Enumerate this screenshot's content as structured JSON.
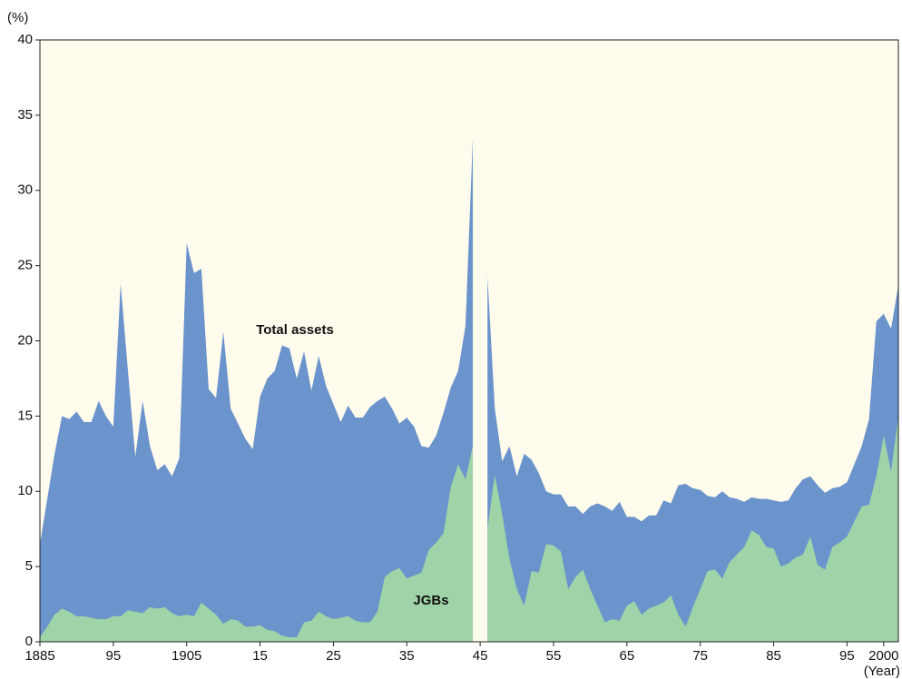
{
  "chart_data": {
    "type": "area",
    "xlabel": "(Year)",
    "ylabel": "(%)",
    "x": [
      1885,
      1886,
      1887,
      1888,
      1889,
      1890,
      1891,
      1892,
      1893,
      1894,
      1895,
      1896,
      1897,
      1898,
      1899,
      1900,
      1901,
      1902,
      1903,
      1904,
      1905,
      1906,
      1907,
      1908,
      1909,
      1910,
      1911,
      1912,
      1913,
      1914,
      1915,
      1916,
      1917,
      1918,
      1919,
      1920,
      1921,
      1922,
      1923,
      1924,
      1925,
      1926,
      1927,
      1928,
      1929,
      1930,
      1931,
      1932,
      1933,
      1934,
      1935,
      1936,
      1937,
      1938,
      1939,
      1940,
      1941,
      1942,
      1943,
      1944,
      1945,
      1946,
      1947,
      1948,
      1949,
      1950,
      1951,
      1952,
      1953,
      1954,
      1955,
      1956,
      1957,
      1958,
      1959,
      1960,
      1961,
      1962,
      1963,
      1964,
      1965,
      1966,
      1967,
      1968,
      1969,
      1970,
      1971,
      1972,
      1973,
      1974,
      1975,
      1976,
      1977,
      1978,
      1979,
      1980,
      1981,
      1982,
      1983,
      1984,
      1985,
      1986,
      1987,
      1988,
      1989,
      1990,
      1991,
      1992,
      1993,
      1994,
      1995,
      1996,
      1997,
      1998,
      1999,
      2000,
      2001,
      2002
    ],
    "series": [
      {
        "name": "Total assets",
        "color": "#6b93cc",
        "values": [
          6.5,
          9.5,
          12.5,
          15.0,
          14.8,
          15.3,
          14.6,
          14.6,
          16.0,
          15.0,
          14.3,
          23.8,
          18.0,
          12.3,
          16.0,
          13.0,
          11.4,
          11.8,
          11.0,
          12.2,
          26.5,
          24.5,
          24.8,
          16.8,
          16.2,
          20.6,
          15.5,
          14.5,
          13.5,
          12.8,
          16.3,
          17.5,
          18.0,
          19.7,
          19.5,
          17.5,
          19.3,
          16.7,
          19.0,
          17.0,
          15.8,
          14.6,
          15.7,
          14.9,
          14.9,
          15.6,
          16.0,
          16.3,
          15.5,
          14.5,
          14.9,
          14.3,
          13.0,
          12.9,
          13.7,
          15.2,
          16.9,
          18.0,
          21.0,
          33.5,
          null,
          24.3,
          15.5,
          12.0,
          13.0,
          11.0,
          12.5,
          12.1,
          11.2,
          10.0,
          9.8,
          9.8,
          9.0,
          9.0,
          8.5,
          9.0,
          9.2,
          9.0,
          8.7,
          9.3,
          8.3,
          8.3,
          8.0,
          8.4,
          8.4,
          9.4,
          9.2,
          10.4,
          10.5,
          10.2,
          10.1,
          9.7,
          9.6,
          10.0,
          9.6,
          9.5,
          9.3,
          9.6,
          9.5,
          9.5,
          9.4,
          9.3,
          9.4,
          10.2,
          10.8,
          11.0,
          10.4,
          9.9,
          10.2,
          10.3,
          10.6,
          11.8,
          13.0,
          14.8,
          21.3,
          21.8,
          20.8,
          23.7
        ]
      },
      {
        "name": "JGBs",
        "color": "#9fd4a8",
        "values": [
          0.3,
          1.0,
          1.8,
          2.2,
          2.0,
          1.7,
          1.7,
          1.6,
          1.5,
          1.5,
          1.7,
          1.7,
          2.1,
          2.0,
          1.9,
          2.3,
          2.2,
          2.3,
          1.9,
          1.7,
          1.8,
          1.7,
          2.6,
          2.2,
          1.8,
          1.2,
          1.5,
          1.4,
          1.0,
          1.0,
          1.1,
          0.8,
          0.7,
          0.4,
          0.3,
          0.3,
          1.3,
          1.4,
          2.0,
          1.7,
          1.5,
          1.6,
          1.7,
          1.4,
          1.3,
          1.3,
          2.0,
          4.3,
          4.7,
          4.9,
          4.2,
          4.4,
          4.6,
          6.1,
          6.6,
          7.2,
          10.3,
          11.8,
          10.8,
          13.0,
          null,
          7.5,
          11.1,
          8.5,
          5.5,
          3.5,
          2.4,
          4.7,
          4.6,
          6.5,
          6.4,
          6.0,
          3.5,
          4.3,
          4.8,
          3.5,
          2.4,
          1.3,
          1.5,
          1.4,
          2.4,
          2.7,
          1.8,
          2.2,
          2.4,
          2.6,
          3.1,
          1.8,
          1.0,
          2.3,
          3.5,
          4.7,
          4.8,
          4.2,
          5.3,
          5.8,
          6.3,
          7.4,
          7.1,
          6.3,
          6.2,
          5.0,
          5.2,
          5.6,
          5.8,
          7.0,
          5.1,
          4.8,
          6.3,
          6.6,
          7.0,
          8.0,
          9.0,
          9.1,
          11.0,
          13.7,
          11.3,
          15.0
        ]
      }
    ],
    "xlim": [
      1885,
      2002
    ],
    "ylim": [
      0,
      40
    ],
    "xticks": [
      1885,
      {
        "value": 1895,
        "label": "95"
      },
      1905,
      {
        "value": 1915,
        "label": "15"
      },
      {
        "value": 1925,
        "label": "25"
      },
      {
        "value": 1935,
        "label": "35"
      },
      {
        "value": 1945,
        "label": "45"
      },
      {
        "value": 1955,
        "label": "55"
      },
      {
        "value": 1965,
        "label": "65"
      },
      {
        "value": 1975,
        "label": "75"
      },
      {
        "value": 1985,
        "label": "85"
      },
      {
        "value": 1995,
        "label": "95"
      },
      2000
    ],
    "yticks": [
      0,
      5,
      10,
      15,
      20,
      25,
      30,
      35,
      40
    ],
    "background": "#fffcee"
  }
}
